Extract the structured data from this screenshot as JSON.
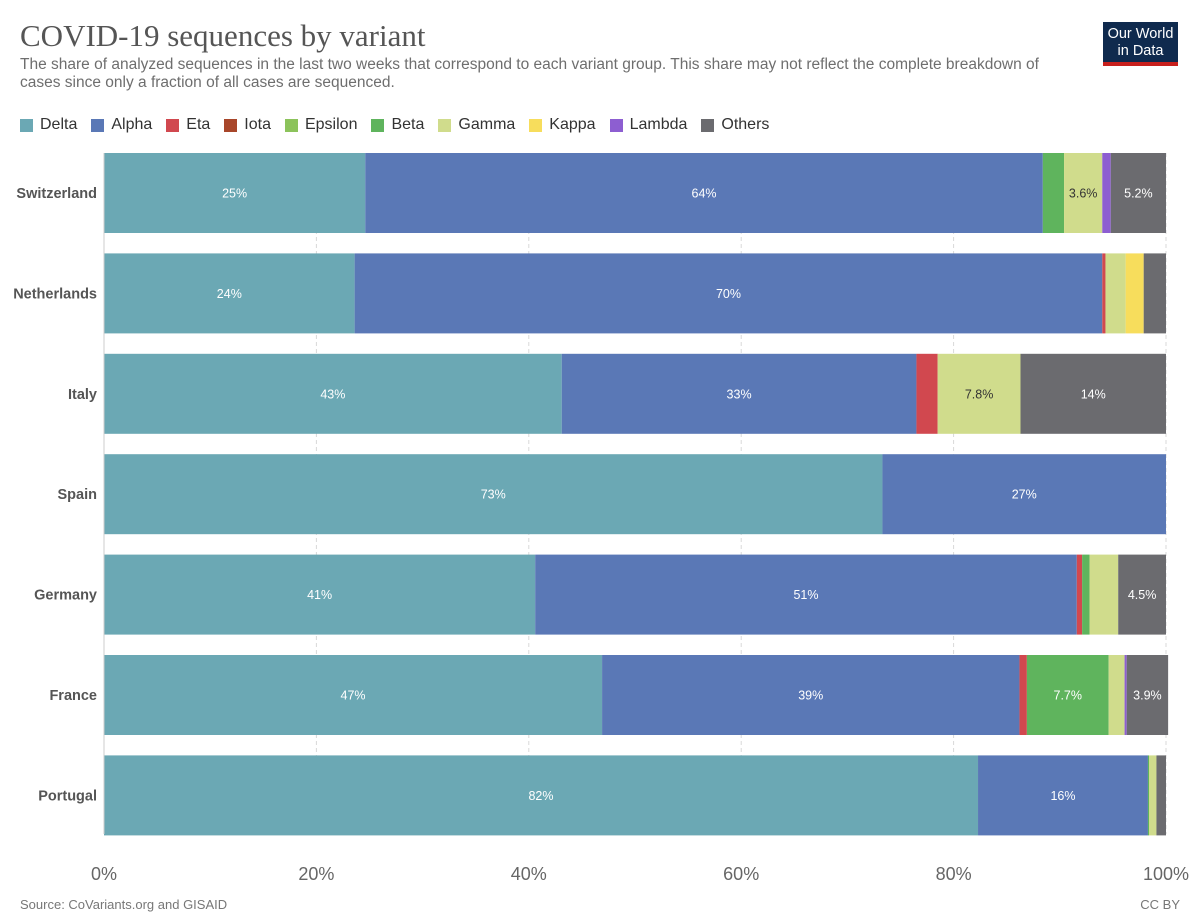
{
  "header": {
    "title": "COVID-19 sequences by variant",
    "subtitle": "The share of analyzed sequences in the last two weeks that correspond to each variant group. This share may not reflect the complete breakdown of cases since only a fraction of all cases are sequenced.",
    "logo_line1": "Our World",
    "logo_line2": "in Data"
  },
  "footer": {
    "source": "Source: CoVariants.org and GISAID",
    "license": "CC BY"
  },
  "chart_data": {
    "type": "bar",
    "orientation": "horizontal",
    "stacked": true,
    "categories": [
      "Switzerland",
      "Netherlands",
      "Italy",
      "Spain",
      "Germany",
      "France",
      "Portugal"
    ],
    "xlim": [
      0,
      100
    ],
    "x_ticks": [
      "0%",
      "20%",
      "40%",
      "60%",
      "80%",
      "100%"
    ],
    "grid": "vertical dashed",
    "legend_position": "top",
    "series": [
      {
        "name": "Delta",
        "color": "#6ba8b4",
        "values": [
          24.6,
          23.6,
          43.1,
          73.3,
          40.6,
          46.9,
          82.3
        ],
        "labels": [
          "25%",
          "24%",
          "43%",
          "73%",
          "41%",
          "47%",
          "82%"
        ]
      },
      {
        "name": "Alpha",
        "color": "#5a78b6",
        "values": [
          63.8,
          70.4,
          33.4,
          26.7,
          51.0,
          39.3,
          16.0
        ],
        "labels": [
          "64%",
          "70%",
          "33%",
          "27%",
          "51%",
          "39%",
          "16%"
        ]
      },
      {
        "name": "Eta",
        "color": "#d1484f",
        "values": [
          0,
          0.3,
          2.0,
          0,
          0.5,
          0.7,
          0
        ],
        "labels": [
          "",
          "",
          "",
          "",
          "",
          "",
          ""
        ]
      },
      {
        "name": "Iota",
        "color": "#a8462a",
        "values": [
          0,
          0,
          0,
          0,
          0,
          0,
          0
        ],
        "labels": [
          "",
          "",
          "",
          "",
          "",
          "",
          ""
        ]
      },
      {
        "name": "Epsilon",
        "color": "#8cc35b",
        "values": [
          0,
          0,
          0,
          0,
          0,
          0,
          0
        ],
        "labels": [
          "",
          "",
          "",
          "",
          "",
          "",
          ""
        ]
      },
      {
        "name": "Beta",
        "color": "#5fb45d",
        "values": [
          2.0,
          0,
          0,
          0,
          0.7,
          7.7,
          0.1
        ],
        "labels": [
          "",
          "",
          "",
          "",
          "",
          "7.7%",
          ""
        ]
      },
      {
        "name": "Gamma",
        "color": "#d0dc8c",
        "values": [
          3.6,
          1.9,
          7.8,
          0,
          2.7,
          1.5,
          0.7
        ],
        "labels": [
          "3.6%",
          "",
          "7.8%",
          "",
          "",
          "",
          ""
        ]
      },
      {
        "name": "Kappa",
        "color": "#f7dd5c",
        "values": [
          0,
          1.7,
          0,
          0,
          0,
          0,
          0
        ],
        "labels": [
          "",
          "",
          "",
          "",
          "",
          "",
          ""
        ]
      },
      {
        "name": "Lambda",
        "color": "#8d5ed1",
        "values": [
          0.8,
          0,
          0,
          0,
          0,
          0.2,
          0
        ],
        "labels": [
          "",
          "",
          "",
          "",
          "",
          "",
          ""
        ]
      },
      {
        "name": "Others",
        "color": "#6b6b6f",
        "values": [
          5.2,
          2.1,
          13.7,
          0,
          4.5,
          3.9,
          0.9
        ],
        "labels": [
          "5.2%",
          "",
          "14%",
          "",
          "4.5%",
          "3.9%",
          ""
        ]
      }
    ]
  }
}
